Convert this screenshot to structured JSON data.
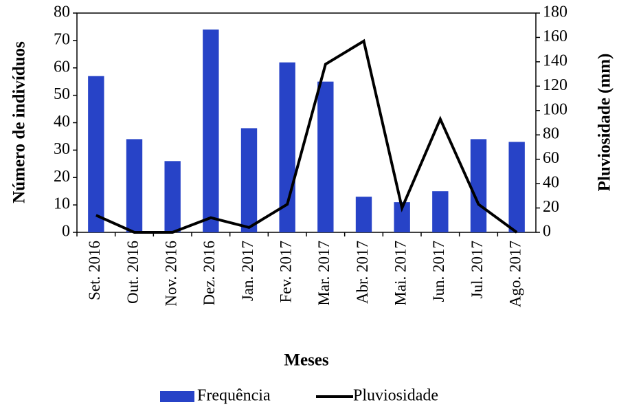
{
  "chart_data": {
    "type": "bar",
    "x_label": "Meses",
    "y_label": "Número de indivíduos",
    "y2_label": "Pluviosidade (mm)",
    "categories": [
      "Set. 2016",
      "Out. 2016",
      "Nov. 2016",
      "Dez. 2016",
      "Jan. 2017",
      "Fev. 2017",
      "Mar. 2017",
      "Abr. 2017",
      "Mai. 2017",
      "Jun. 2017",
      "Jul. 2017",
      "Ago. 2017"
    ],
    "series": [
      {
        "name": "Frequência",
        "type": "bar",
        "color": "#2743c7",
        "values": [
          57,
          34,
          26,
          74,
          38,
          62,
          55,
          13,
          11,
          15,
          34,
          33
        ]
      },
      {
        "name": "Pluviosidade",
        "type": "line",
        "axis": "y2",
        "color": "#000000",
        "values": [
          14,
          0,
          0,
          12,
          4,
          23,
          138,
          157,
          20,
          93,
          23,
          0
        ]
      }
    ],
    "ylim": [
      0,
      80
    ],
    "yticks": [
      0,
      10,
      20,
      30,
      40,
      50,
      60,
      70,
      80
    ],
    "y2lim": [
      0,
      180
    ],
    "y2ticks": [
      0,
      20,
      40,
      60,
      80,
      100,
      120,
      140,
      160,
      180
    ],
    "legend": "bottom"
  }
}
